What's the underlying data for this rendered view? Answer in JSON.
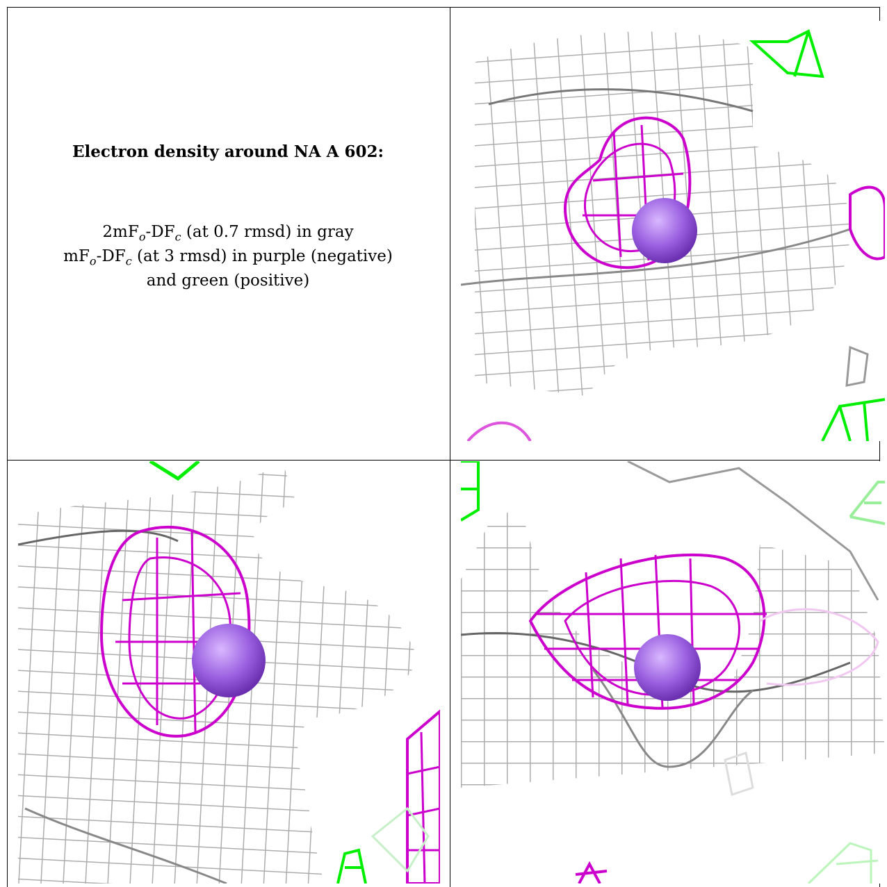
{
  "caption": {
    "title": "Electron density around NA A 602:",
    "line1_a": "2mF",
    "line1_sub1": "o",
    "line1_b": "-DF",
    "line1_sub2": "c",
    "line1_c": " (at 0.7 rmsd) in gray",
    "line2_a": "mF",
    "line2_sub1": "o",
    "line2_b": "-DF",
    "line2_sub2": "c",
    "line2_c": " (at 3 rmsd) in purple (negative)",
    "line3": "and green (positive)"
  },
  "colors": {
    "gray_mesh": "#b4b4b4",
    "dark_mesh": "#6e6e6e",
    "negative": "#cc00cc",
    "positive": "#00ee00",
    "atom": "#9a5fe0",
    "border": "#000000"
  },
  "panels": [
    {
      "name": "view-top-right",
      "description_icon": "electron-density-mesh-icon"
    },
    {
      "name": "view-bottom-left",
      "description_icon": "electron-density-mesh-icon"
    },
    {
      "name": "view-bottom-right",
      "description_icon": "electron-density-mesh-icon"
    }
  ]
}
